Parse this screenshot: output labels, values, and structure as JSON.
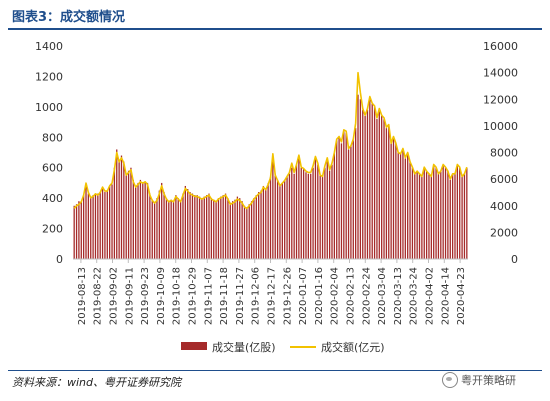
{
  "header": {
    "title": "图表3：成交额情况"
  },
  "footer": {
    "source": "资料来源：wind、粤开证券研究院",
    "watermark": "粤开策略研"
  },
  "chart_data": {
    "type": "bar+line",
    "title": "图表3：成交额情况",
    "left_axis": {
      "ylim": [
        0,
        1400
      ],
      "ticks": [
        0,
        200,
        400,
        600,
        800,
        1000,
        1200,
        1400
      ]
    },
    "right_axis": {
      "ylim": [
        0,
        16000
      ],
      "ticks": [
        0,
        2000,
        4000,
        6000,
        8000,
        10000,
        12000,
        14000,
        16000
      ]
    },
    "x_tick_labels": [
      "2019-08-13",
      "2019-08-22",
      "2019-09-02",
      "2019-09-11",
      "2019-09-23",
      "2019-10-09",
      "2019-10-18",
      "2019-10-29",
      "2019-11-07",
      "2019-11-18",
      "2019-11-27",
      "2019-12-06",
      "2019-12-17",
      "2019-12-26",
      "2020-01-07",
      "2020-01-16",
      "2020-02-04",
      "2020-02-13",
      "2020-02-24",
      "2020-03-04",
      "2020-03-13",
      "2020-03-24",
      "2020-04-02",
      "2020-04-14",
      "2020-04-23"
    ],
    "legend": [
      "成交量(亿股)",
      "成交额(亿元)"
    ],
    "series": [
      {
        "name": "成交量(亿股)",
        "axis": "left",
        "color": "#a52a2a",
        "values": [
          350,
          360,
          380,
          380,
          420,
          480,
          430,
          400,
          420,
          430,
          430,
          440,
          470,
          440,
          450,
          480,
          490,
          600,
          720,
          650,
          680,
          640,
          560,
          580,
          600,
          520,
          480,
          500,
          520,
          500,
          510,
          500,
          430,
          390,
          370,
          400,
          450,
          500,
          440,
          400,
          380,
          390,
          380,
          420,
          400,
          380,
          430,
          480,
          460,
          440,
          430,
          420,
          420,
          410,
          400,
          410,
          420,
          430,
          400,
          390,
          380,
          400,
          410,
          420,
          430,
          400,
          370,
          380,
          390,
          410,
          400,
          380,
          350,
          340,
          360,
          380,
          400,
          420,
          440,
          450,
          480,
          460,
          500,
          540,
          640,
          560,
          520,
          480,
          500,
          520,
          540,
          560,
          600,
          560,
          620,
          680,
          600,
          590,
          570,
          560,
          560,
          600,
          660,
          620,
          550,
          540,
          600,
          650,
          580,
          620,
          700,
          780,
          800,
          760,
          840,
          830,
          720,
          740,
          780,
          860,
          1080,
          1050,
          980,
          940,
          980,
          1060,
          1020,
          1000,
          920,
          980,
          940,
          920,
          860,
          880,
          760,
          800,
          760,
          700,
          690,
          720,
          660,
          700,
          640,
          600,
          560,
          580,
          560,
          540,
          600,
          580,
          560,
          540,
          620,
          600,
          560,
          580,
          620,
          600,
          580,
          520,
          560,
          560,
          620,
          600,
          540,
          560,
          600
        ]
      },
      {
        "name": "成交额(亿元)",
        "axis": "right",
        "color": "#f2c200",
        "values": [
          3800,
          4000,
          4100,
          4300,
          4800,
          5700,
          5000,
          4600,
          4700,
          4900,
          4800,
          5000,
          5400,
          5100,
          5100,
          5500,
          5700,
          6700,
          8000,
          7300,
          7600,
          7200,
          6300,
          6500,
          6700,
          5800,
          5400,
          5600,
          5800,
          5700,
          5800,
          5600,
          4800,
          4400,
          4200,
          4400,
          4900,
          5500,
          4900,
          4500,
          4300,
          4400,
          4300,
          4700,
          4500,
          4300,
          4800,
          5300,
          5100,
          4900,
          4800,
          4700,
          4700,
          4600,
          4500,
          4600,
          4700,
          4800,
          4500,
          4400,
          4300,
          4500,
          4600,
          4700,
          4800,
          4500,
          4100,
          4200,
          4300,
          4500,
          4400,
          4200,
          3900,
          3800,
          4000,
          4200,
          4500,
          4700,
          4900,
          5000,
          5400,
          5200,
          5600,
          6100,
          7900,
          6300,
          5900,
          5500,
          5700,
          5900,
          6200,
          6500,
          7200,
          6500,
          7100,
          7800,
          6900,
          6800,
          6600,
          6500,
          6500,
          7000,
          7700,
          7200,
          6300,
          6200,
          7000,
          7600,
          6700,
          7200,
          8000,
          9000,
          9200,
          8800,
          9700,
          9600,
          8300,
          8500,
          9000,
          10200,
          14000,
          12500,
          11300,
          10800,
          11300,
          12200,
          11700,
          11500,
          10600,
          11300,
          10800,
          10600,
          9900,
          10100,
          8700,
          9200,
          8700,
          8000,
          7900,
          8300,
          7600,
          8000,
          7300,
          6900,
          6400,
          6600,
          6400,
          6200,
          6900,
          6600,
          6400,
          6200,
          7100,
          6900,
          6400,
          6600,
          7100,
          6900,
          6600,
          6000,
          6400,
          6400,
          7100,
          6900,
          6200,
          6400,
          6900
        ]
      }
    ]
  }
}
